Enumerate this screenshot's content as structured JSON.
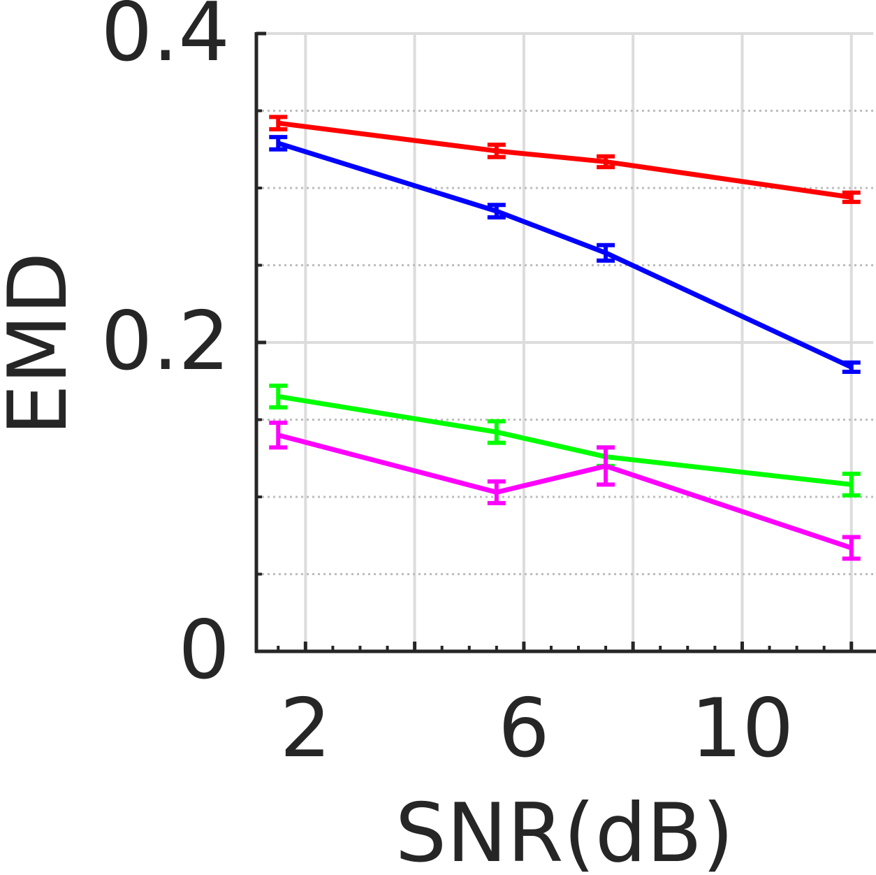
{
  "chart_data": {
    "type": "line",
    "title": "",
    "xlabel": "SNR(dB)",
    "ylabel": "EMD",
    "xlim": [
      1.1,
      12.4
    ],
    "ylim": [
      0,
      0.4
    ],
    "x_ticks": [
      2,
      6,
      10
    ],
    "x_tick_labels": [
      "2",
      "6",
      "10"
    ],
    "y_ticks": [
      0,
      0.2,
      0.4
    ],
    "y_tick_labels": [
      "0",
      "0.2",
      "0.4"
    ],
    "x_minor_ticks": [
      1.5,
      2.5,
      3,
      3.5,
      4,
      4.5,
      5,
      5.5,
      6.5,
      7,
      7.5,
      8,
      8.5,
      9,
      9.5,
      10.5,
      11,
      11.5,
      12
    ],
    "y_minor_ticks": [
      0.05,
      0.1,
      0.15,
      0.25,
      0.3,
      0.35
    ],
    "grid": true,
    "error_bars": true,
    "series": [
      {
        "color": "#ff0000",
        "x": [
          1.5,
          5.5,
          7.5,
          12
        ],
        "y": [
          0.342,
          0.324,
          0.317,
          0.294
        ],
        "err": [
          0.004,
          0.004,
          0.0035,
          0.003
        ]
      },
      {
        "color": "#0000ff",
        "x": [
          1.5,
          5.5,
          7.5,
          12
        ],
        "y": [
          0.329,
          0.285,
          0.258,
          0.184
        ],
        "err": [
          0.004,
          0.004,
          0.005,
          0.003
        ]
      },
      {
        "color": "#00ff00",
        "x": [
          1.5,
          5.5,
          7.5,
          12
        ],
        "y": [
          0.165,
          0.142,
          0.126,
          0.108
        ],
        "err": [
          0.007,
          0.007,
          0.006,
          0.007
        ]
      },
      {
        "color": "#ff00ff",
        "x": [
          1.5,
          5.5,
          7.5,
          12
        ],
        "y": [
          0.14,
          0.103,
          0.12,
          0.067
        ],
        "err": [
          0.008,
          0.007,
          0.012,
          0.007
        ]
      }
    ]
  }
}
